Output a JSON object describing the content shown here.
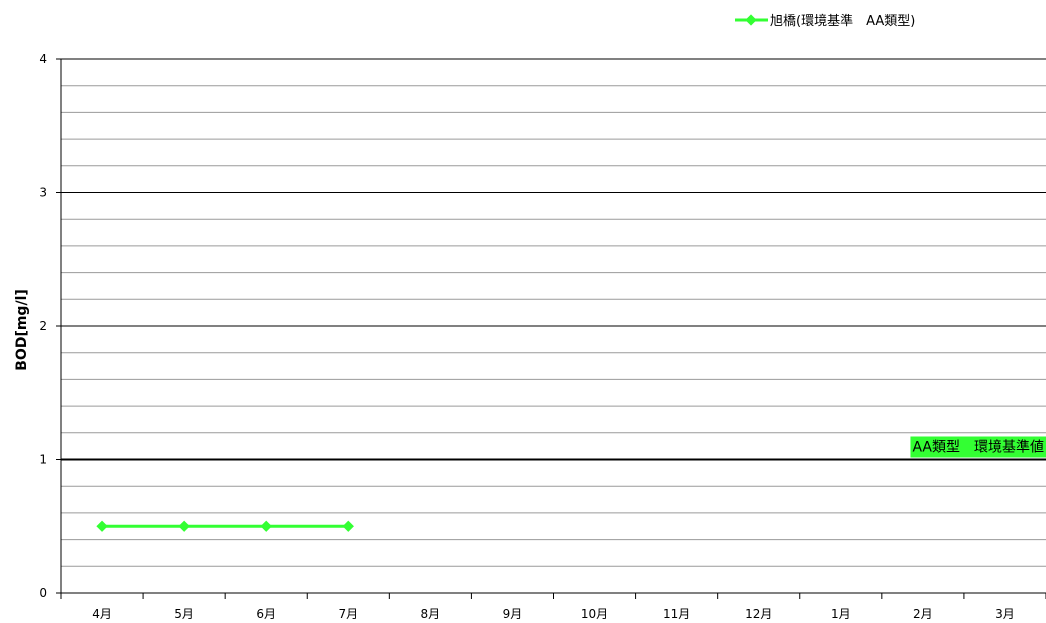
{
  "chart_data": {
    "type": "line",
    "categories": [
      "4月",
      "5月",
      "6月",
      "7月",
      "8月",
      "9月",
      "10月",
      "11月",
      "12月",
      "1月",
      "2月",
      "3月"
    ],
    "series": [
      {
        "name": "旭橋(環境基準　AA類型)",
        "values": [
          0.5,
          0.5,
          0.5,
          0.5,
          null,
          null,
          null,
          null,
          null,
          null,
          null,
          null
        ],
        "color": "#33ff33"
      }
    ],
    "reference_line": {
      "value": 1,
      "label": "AA類型　環境基準値",
      "label_bg": "#33ff33"
    },
    "ylabel": "BOD[mg/l]",
    "ylim": [
      0,
      4
    ],
    "yticks": [
      "0",
      "1",
      "2",
      "3",
      "4"
    ],
    "minor_gridlines": true,
    "legend_position": "top-right"
  }
}
